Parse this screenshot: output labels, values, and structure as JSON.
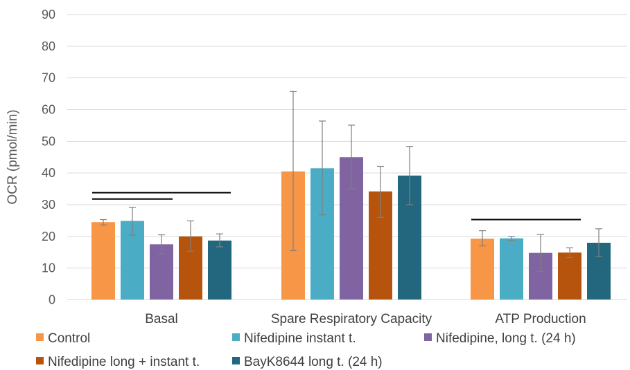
{
  "chart_data": {
    "type": "bar",
    "title": "",
    "xlabel": "",
    "ylabel": "OCR (pmol/min)",
    "ylim": [
      0,
      90
    ],
    "yticks": [
      0,
      10,
      20,
      30,
      40,
      50,
      60,
      70,
      80,
      90
    ],
    "grid": true,
    "legend_position": "bottom",
    "categories": [
      "Basal",
      "Spare Respiratory Capacity",
      "ATP Production"
    ],
    "series": [
      {
        "name": "Control",
        "color": "#F79646",
        "values": [
          24.5,
          40.5,
          19.3
        ],
        "err_low": [
          23.6,
          15.5,
          17.0
        ],
        "err_high": [
          25.3,
          65.7,
          21.8
        ]
      },
      {
        "name": "Nifedipine instant t.",
        "color": "#4BACC6",
        "values": [
          24.9,
          41.5,
          19.4
        ],
        "err_low": [
          20.4,
          26.8,
          18.7
        ],
        "err_high": [
          29.2,
          56.4,
          20.0
        ]
      },
      {
        "name": "Nifedipine, long t. (24 h)",
        "color": "#8064A2",
        "values": [
          17.5,
          45.0,
          14.8
        ],
        "err_low": [
          14.5,
          35.0,
          9.0
        ],
        "err_high": [
          20.5,
          55.1,
          20.6
        ]
      },
      {
        "name": "Nifedipine  long + instant t.",
        "color": "#B6540E",
        "values": [
          20.0,
          34.2,
          14.9
        ],
        "err_low": [
          15.3,
          26.0,
          13.3
        ],
        "err_high": [
          24.9,
          42.1,
          16.4
        ]
      },
      {
        "name": "BayK8644 long t. (24 h)",
        "color": "#22677D",
        "values": [
          18.7,
          39.2,
          18.0
        ],
        "err_low": [
          16.7,
          30.0,
          13.6
        ],
        "err_high": [
          20.8,
          48.4,
          22.4
        ]
      }
    ],
    "significance_bars": [
      {
        "category": 0,
        "from_series": 0,
        "to_series": 2,
        "y": 31.8
      },
      {
        "category": 0,
        "from_series": 0,
        "to_series": 4,
        "y": 33.8
      },
      {
        "category": 2,
        "from_series": 0,
        "to_series": 3,
        "y": 25.3
      }
    ]
  }
}
